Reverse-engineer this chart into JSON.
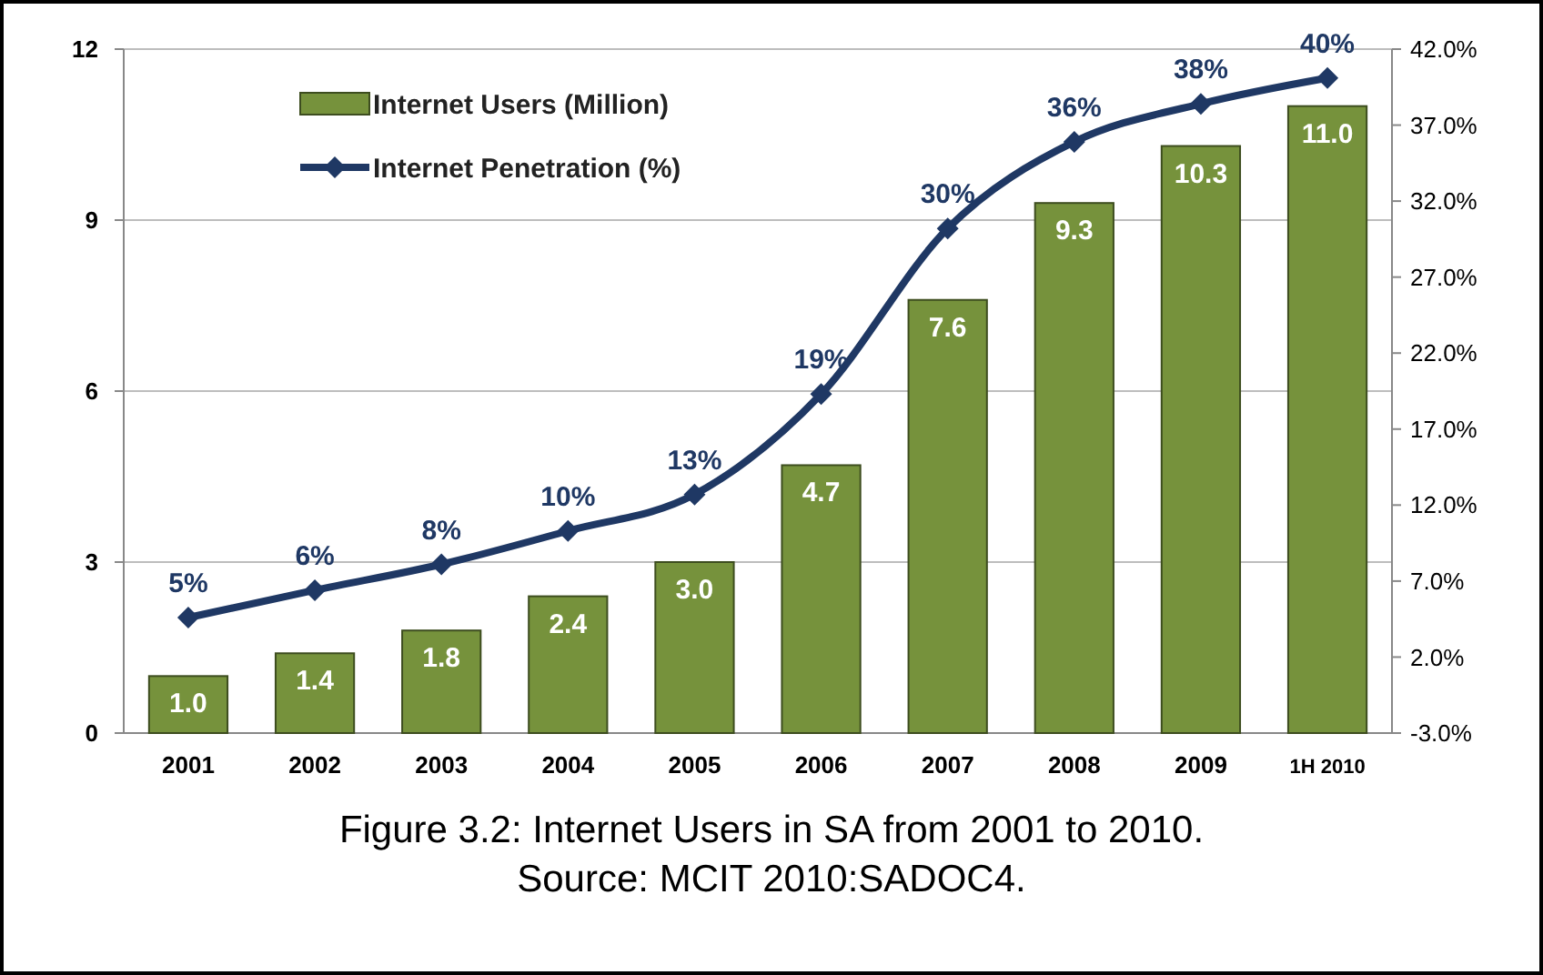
{
  "chart_data": {
    "type": "bar",
    "categories": [
      "2001",
      "2002",
      "2003",
      "2004",
      "2005",
      "2006",
      "2007",
      "2008",
      "2009",
      "1H 2010"
    ],
    "series": [
      {
        "name": "Internet Users (Million)",
        "color": "#76923c",
        "values": [
          1.0,
          1.4,
          1.8,
          2.4,
          3.0,
          4.7,
          7.6,
          9.3,
          10.3,
          11.0
        ],
        "value_labels": [
          "1.0",
          "1.4",
          "1.8",
          "2.4",
          "3.0",
          "4.7",
          "7.6",
          "9.3",
          "10.3",
          "11.0"
        ]
      },
      {
        "name": "Internet Penetration (%)",
        "type": "line",
        "axis": "y2",
        "color": "#1f3864",
        "marker": "diamond",
        "values": [
          4.6,
          6.4,
          8.1,
          10.3,
          12.7,
          19.3,
          30.2,
          35.9,
          38.4,
          40.1
        ],
        "value_labels": [
          "5%",
          "6%",
          "8%",
          "10%",
          "13%",
          "19%",
          "30%",
          "36%",
          "38%",
          "40%"
        ]
      }
    ],
    "ylim": [
      0,
      12
    ],
    "yticks": [
      0,
      3,
      6,
      9,
      12
    ],
    "y2lim": [
      -3,
      42
    ],
    "y2ticks": [
      {
        "value": -3,
        "label": "-3.0%"
      },
      {
        "value": 2,
        "label": "2.0%"
      },
      {
        "value": 7,
        "label": "7.0%"
      },
      {
        "value": 12,
        "label": "12.0%"
      },
      {
        "value": 17,
        "label": "17.0%"
      },
      {
        "value": 22,
        "label": "22.0%"
      },
      {
        "value": 27,
        "label": "27.0%"
      },
      {
        "value": 32,
        "label": "32.0%"
      },
      {
        "value": 37,
        "label": "37.0%"
      },
      {
        "value": 42,
        "label": "42.0%"
      }
    ],
    "grid": "y",
    "legend": "top left",
    "annotations": [
      "Figure 3.2: Internet Users in SA from 2001 to 2010.",
      "Source: MCIT 2010:SADOC4."
    ]
  }
}
